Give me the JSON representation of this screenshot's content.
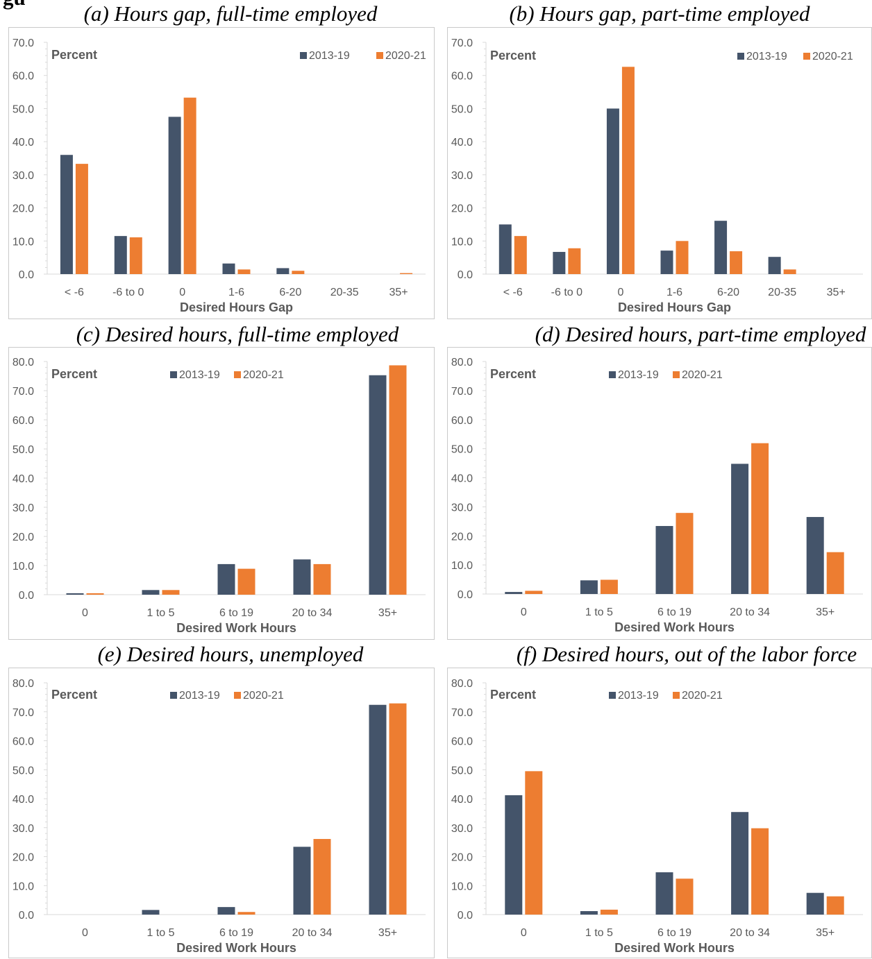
{
  "colors": {
    "s2013": "#44546a",
    "s2020": "#ed7d31",
    "axis": "#d9d9d9",
    "text": "#595959"
  },
  "figure_heading": "gu",
  "panels": [
    {
      "id": "a",
      "caption": "(a) Hours gap, full-time employed"
    },
    {
      "id": "b",
      "caption": "(b) Hours gap, part-time employed"
    },
    {
      "id": "c",
      "caption": "(c) Desired hours, full-time employed"
    },
    {
      "id": "d",
      "caption": "(d) Desired hours, part-time employed"
    },
    {
      "id": "e",
      "caption": "(e) Desired hours, unemployed"
    },
    {
      "id": "f",
      "caption": "(f) Desired hours, out of the labor force"
    }
  ],
  "chart_data": [
    {
      "type": "bar",
      "title": "(a) Hours gap, full-time employed",
      "ylabel": "Percent",
      "xlabel": "Desired Hours Gap",
      "ylim": [
        0,
        70
      ],
      "yticks": [
        "0.0",
        "10.0",
        "20.0",
        "30.0",
        "40.0",
        "50.0",
        "60.0",
        "70.0"
      ],
      "categories": [
        "< -6",
        "-6 to 0",
        "0",
        "1-6",
        "6-20",
        "20-35",
        "35+"
      ],
      "series": [
        {
          "name": "2013-19",
          "values": [
            36.0,
            11.5,
            47.5,
            3.2,
            1.8,
            0.0,
            0.0
          ]
        },
        {
          "name": "2020-21",
          "values": [
            33.3,
            11.1,
            53.3,
            1.4,
            1.0,
            0.0,
            0.3
          ]
        }
      ],
      "legend": "top-right",
      "grid": false
    },
    {
      "type": "bar",
      "title": "(b) Hours gap, part-time employed",
      "ylabel": "Percent",
      "xlabel": "Desired Hours Gap",
      "ylim": [
        0,
        70
      ],
      "yticks": [
        "0.0",
        "10.0",
        "20.0",
        "30.0",
        "40.0",
        "50.0",
        "60.0",
        "70.0"
      ],
      "categories": [
        "< -6",
        "-6 to 0",
        "0",
        "1-6",
        "6-20",
        "20-35",
        "35+"
      ],
      "series": [
        {
          "name": "2013-19",
          "values": [
            15.0,
            6.7,
            50.0,
            7.1,
            16.1,
            5.2,
            0.0
          ]
        },
        {
          "name": "2020-21",
          "values": [
            11.5,
            7.8,
            62.6,
            10.0,
            6.9,
            1.4,
            0.0
          ]
        }
      ],
      "legend": "top-right",
      "grid": false
    },
    {
      "type": "bar",
      "title": "(c) Desired hours, full-time employed",
      "ylabel": "Percent",
      "xlabel": "Desired Work Hours",
      "ylim": [
        0,
        80
      ],
      "yticks": [
        "0.0",
        "10.0",
        "20.0",
        "30.0",
        "40.0",
        "50.0",
        "60.0",
        "70.0",
        "80.0"
      ],
      "categories": [
        "0",
        "1 to 5",
        "6 to 19",
        "20 to 34",
        "35+"
      ],
      "series": [
        {
          "name": "2013-19",
          "values": [
            0.5,
            1.6,
            10.5,
            12.1,
            75.3
          ]
        },
        {
          "name": "2020-21",
          "values": [
            0.5,
            1.6,
            8.9,
            10.5,
            78.7
          ]
        }
      ],
      "legend": "top-center",
      "grid": false
    },
    {
      "type": "bar",
      "title": "(d) Desired hours, part-time employed",
      "ylabel": "Percent",
      "xlabel": "Desired Work Hours",
      "ylim": [
        0,
        80
      ],
      "yticks": [
        "0.0",
        "10.0",
        "20.0",
        "30.0",
        "40.0",
        "50.0",
        "60.0",
        "70.0",
        "80.0"
      ],
      "categories": [
        "0",
        "1 to 5",
        "6 to 19",
        "20 to 34",
        "35+"
      ],
      "series": [
        {
          "name": "2013-19",
          "values": [
            0.7,
            4.7,
            23.4,
            44.8,
            26.5
          ]
        },
        {
          "name": "2020-21",
          "values": [
            1.1,
            4.9,
            27.9,
            51.9,
            14.4
          ]
        }
      ],
      "legend": "top-center",
      "grid": false
    },
    {
      "type": "bar",
      "title": "(e) Desired hours, unemployed",
      "ylabel": "Percent",
      "xlabel": "Desired Work Hours",
      "ylim": [
        0,
        80
      ],
      "yticks": [
        "0.0",
        "10.0",
        "20.0",
        "30.0",
        "40.0",
        "50.0",
        "60.0",
        "70.0",
        "80.0"
      ],
      "categories": [
        "0",
        "1 to 5",
        "6 to 19",
        "20 to 34",
        "35+"
      ],
      "series": [
        {
          "name": "2013-19",
          "values": [
            0.0,
            1.6,
            2.6,
            23.4,
            72.4
          ]
        },
        {
          "name": "2020-21",
          "values": [
            0.0,
            0.0,
            0.9,
            26.1,
            72.9
          ]
        }
      ],
      "legend": "top-center",
      "grid": false
    },
    {
      "type": "bar",
      "title": "(f) Desired hours, out of the labor force",
      "ylabel": "Percent",
      "xlabel": "Desired Work Hours",
      "ylim": [
        0,
        80
      ],
      "yticks": [
        "0.0",
        "10.0",
        "20.0",
        "30.0",
        "40.0",
        "50.0",
        "60.0",
        "70.0",
        "80.0"
      ],
      "categories": [
        "0",
        "1 to 5",
        "6 to 19",
        "20 to 34",
        "35+"
      ],
      "series": [
        {
          "name": "2013-19",
          "values": [
            41.2,
            1.2,
            14.6,
            35.4,
            7.5
          ]
        },
        {
          "name": "2020-21",
          "values": [
            49.5,
            1.7,
            12.4,
            29.8,
            6.3
          ]
        }
      ],
      "legend": "top-center",
      "grid": false
    }
  ]
}
